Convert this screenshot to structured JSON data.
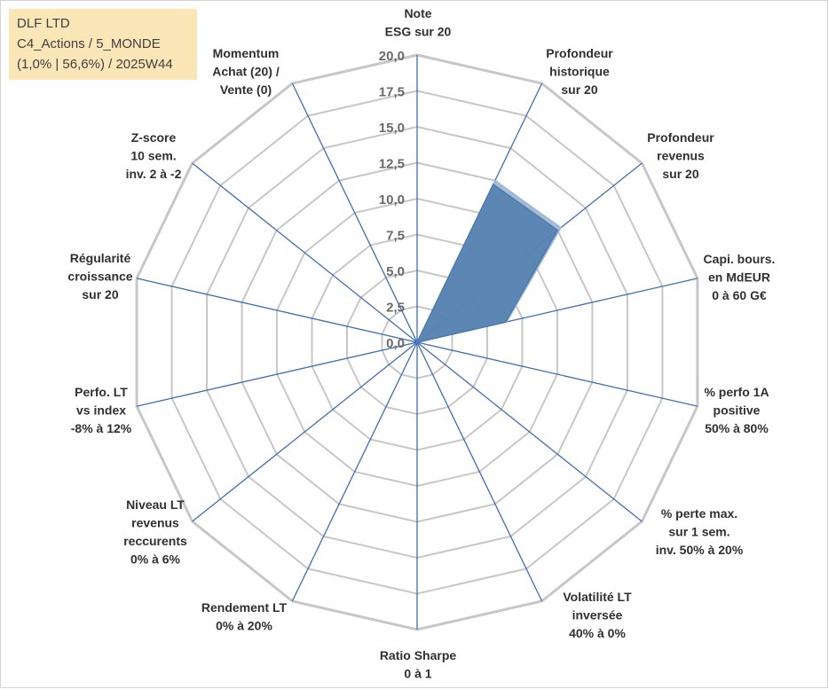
{
  "info_box": {
    "line1": "DLF LTD",
    "line2": "C4_Actions / 5_MONDE",
    "line3": "(1,0% | 56,6%) / 2025W44"
  },
  "chart_data": {
    "type": "radar",
    "axes": [
      [
        "Note",
        "ESG sur 20"
      ],
      [
        "Profondeur",
        "historique",
        "sur 20"
      ],
      [
        "Profondeur",
        "revenus",
        "sur 20"
      ],
      [
        "Capi. bours.",
        "en MdEUR",
        "0 à 60 G€"
      ],
      [
        "% perfo 1A",
        "positive",
        "50% à 80%"
      ],
      [
        "% perte max.",
        "sur 1 sem.",
        "inv. 50% à 20%"
      ],
      [
        "Volatilité LT",
        "inversée",
        "40% à 0%"
      ],
      [
        "Ratio Sharpe",
        "0 à 1"
      ],
      [
        "Rendement LT",
        "0% à 20%"
      ],
      [
        "Niveau LT",
        "revenus",
        "reccurents",
        "0% à 6%"
      ],
      [
        "Perfo. LT",
        "vs index",
        "-8% à 12%"
      ],
      [
        "Régularité",
        "croissance",
        "sur 20"
      ],
      [
        "Z-score",
        "10 sem.",
        "inv. 2 à -2"
      ],
      [
        "Momentum",
        "Achat (20) /",
        "Vente (0)"
      ]
    ],
    "rlim": [
      0,
      20
    ],
    "ticks": [
      "0,0",
      "2,5",
      "5,0",
      "7,5",
      "10,0",
      "12,5",
      "15,0",
      "17,5",
      "20,0"
    ],
    "series": [
      {
        "values": [
          0,
          12.2,
          12.5,
          6.3,
          0,
          0,
          0,
          0,
          0,
          0,
          0,
          0,
          0,
          0
        ],
        "color": "#4f7bab"
      },
      {
        "values": [
          0,
          12.5,
          12.8,
          6.4,
          0,
          0,
          0,
          0,
          0,
          0,
          0,
          0,
          0,
          0
        ],
        "color": "#9fb8d6"
      }
    ],
    "grid": true,
    "grid_color": "#c7c7c7",
    "spoke_color": "#3f6db5"
  }
}
